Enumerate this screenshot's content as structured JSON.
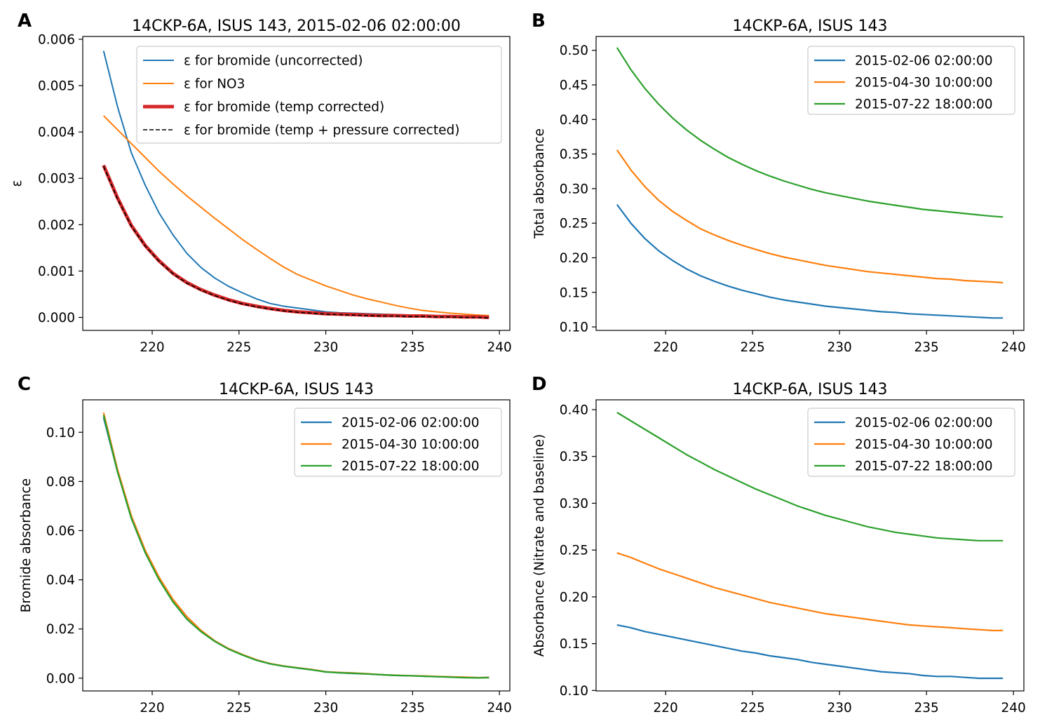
{
  "chart_data": [
    {
      "type": "line",
      "panel_label": "A",
      "title": "14CKP-6A, ISUS 143, 2015-02-06 02:00:00",
      "xlabel": "",
      "ylabel": "ε",
      "xlim": [
        216,
        240.6
      ],
      "ylim": [
        -0.00028,
        0.00606
      ],
      "xticks": [
        "220",
        "225",
        "230",
        "235",
        "240"
      ],
      "yticks": [
        "0.000",
        "0.001",
        "0.002",
        "0.003",
        "0.004",
        "0.005",
        "0.006"
      ],
      "legend_position": "top-right",
      "x": [
        217.2,
        218.0,
        218.8,
        219.6,
        220.4,
        221.2,
        222.0,
        222.8,
        223.6,
        224.4,
        225.2,
        226.0,
        226.8,
        227.6,
        228.4,
        229.2,
        230.0,
        230.8,
        231.6,
        232.4,
        233.2,
        234.0,
        234.8,
        235.6,
        236.4,
        237.2,
        238.0,
        238.8,
        239.4
      ],
      "series": [
        {
          "name": "ε for bromide (uncorrected)",
          "color": "#1f77b4",
          "style": "solid",
          "width": 2,
          "values": [
            0.00575,
            0.00455,
            0.00355,
            0.00285,
            0.00225,
            0.00178,
            0.00138,
            0.00108,
            0.00085,
            0.00067,
            0.00053,
            0.0004,
            0.0003,
            0.00024,
            0.0002,
            0.00016,
            0.00012,
            0.0001,
            9e-05,
            8e-05,
            7e-05,
            6e-05,
            5e-05,
            4e-05,
            4e-05,
            3e-05,
            2e-05,
            2e-05,
            1e-05
          ]
        },
        {
          "name": "ε for NO3",
          "color": "#ff7f0e",
          "style": "solid",
          "width": 2,
          "values": [
            0.00435,
            0.00405,
            0.00375,
            0.00345,
            0.00315,
            0.00288,
            0.00262,
            0.00238,
            0.00214,
            0.00191,
            0.00168,
            0.00147,
            0.00127,
            0.00108,
            0.00092,
            0.0008,
            0.00068,
            0.00058,
            0.00048,
            0.0004,
            0.00033,
            0.00026,
            0.0002,
            0.00015,
            0.00012,
            9e-05,
            7e-05,
            5e-05,
            4e-05
          ]
        },
        {
          "name": "ε for bromide (temp corrected)",
          "color": "#d62728",
          "style": "solid",
          "width": 5,
          "values": [
            0.00328,
            0.00258,
            0.00198,
            0.00155,
            0.00122,
            0.00095,
            0.00075,
            0.0006,
            0.00048,
            0.00038,
            0.0003,
            0.00024,
            0.00019,
            0.00015,
            0.00012,
            0.0001,
            8e-05,
            7e-05,
            6e-05,
            5e-05,
            4e-05,
            4e-05,
            3e-05,
            3e-05,
            2e-05,
            2e-05,
            1e-05,
            1e-05,
            0.0
          ]
        },
        {
          "name": "ε for bromide (temp + pressure corrected)",
          "color": "#000000",
          "style": "dashed",
          "width": 1.6,
          "values": [
            0.00326,
            0.00256,
            0.00197,
            0.00154,
            0.00121,
            0.00094,
            0.00074,
            0.00059,
            0.00047,
            0.00037,
            0.00029,
            0.00023,
            0.00018,
            0.00014,
            0.00011,
            9e-05,
            7e-05,
            6e-05,
            5e-05,
            4e-05,
            3e-05,
            3e-05,
            2e-05,
            2e-05,
            1e-05,
            1e-05,
            0.0,
            0.0,
            -1e-05
          ]
        }
      ]
    },
    {
      "type": "line",
      "panel_label": "B",
      "title": "14CKP-6A, ISUS 143",
      "xlabel": "",
      "ylabel": "Total absorbance",
      "xlim": [
        216,
        240.6
      ],
      "ylim": [
        0.095,
        0.52
      ],
      "xticks": [
        "220",
        "225",
        "230",
        "235",
        "240"
      ],
      "yticks": [
        "0.10",
        "0.15",
        "0.20",
        "0.25",
        "0.30",
        "0.35",
        "0.40",
        "0.45",
        "0.50"
      ],
      "legend_position": "top-right",
      "x": [
        217.2,
        218.0,
        218.8,
        219.6,
        220.4,
        221.2,
        222.0,
        222.8,
        223.6,
        224.4,
        225.2,
        226.0,
        226.8,
        227.6,
        228.4,
        229.2,
        230.0,
        230.8,
        231.6,
        232.4,
        233.2,
        234.0,
        234.8,
        235.6,
        236.4,
        237.2,
        238.0,
        238.8,
        239.4
      ],
      "series": [
        {
          "name": "2015-02-06 02:00:00",
          "color": "#1f77b4",
          "values": [
            0.277,
            0.25,
            0.228,
            0.21,
            0.196,
            0.184,
            0.174,
            0.166,
            0.159,
            0.153,
            0.148,
            0.143,
            0.139,
            0.136,
            0.133,
            0.13,
            0.128,
            0.126,
            0.124,
            0.122,
            0.121,
            0.119,
            0.118,
            0.117,
            0.116,
            0.115,
            0.114,
            0.113,
            0.113
          ]
        },
        {
          "name": "2015-04-30 10:00:00",
          "color": "#ff7f0e",
          "values": [
            0.356,
            0.327,
            0.303,
            0.283,
            0.267,
            0.254,
            0.242,
            0.233,
            0.225,
            0.218,
            0.212,
            0.206,
            0.201,
            0.197,
            0.193,
            0.189,
            0.186,
            0.183,
            0.18,
            0.178,
            0.176,
            0.174,
            0.172,
            0.17,
            0.169,
            0.167,
            0.166,
            0.165,
            0.164
          ]
        },
        {
          "name": "2015-07-22 18:00:00",
          "color": "#2ca02c",
          "values": [
            0.504,
            0.472,
            0.445,
            0.422,
            0.402,
            0.385,
            0.37,
            0.357,
            0.345,
            0.335,
            0.326,
            0.318,
            0.311,
            0.305,
            0.299,
            0.294,
            0.29,
            0.286,
            0.282,
            0.279,
            0.276,
            0.273,
            0.27,
            0.268,
            0.266,
            0.264,
            0.262,
            0.26,
            0.259
          ]
        }
      ]
    },
    {
      "type": "line",
      "panel_label": "C",
      "title": "14CKP-6A, ISUS 143",
      "xlabel": "",
      "ylabel": "Bromide absorbance",
      "xlim": [
        216,
        240.6
      ],
      "ylim": [
        -0.0052,
        0.1132
      ],
      "xticks": [
        "220",
        "225",
        "230",
        "235",
        "240"
      ],
      "yticks": [
        "0.00",
        "0.02",
        "0.04",
        "0.06",
        "0.08",
        "0.10"
      ],
      "legend_position": "top-right",
      "x": [
        217.2,
        218.0,
        218.8,
        219.6,
        220.4,
        221.2,
        222.0,
        222.8,
        223.6,
        224.4,
        225.2,
        226.0,
        226.8,
        227.6,
        228.4,
        229.2,
        230.0,
        230.8,
        231.6,
        232.4,
        233.2,
        234.0,
        234.8,
        235.6,
        236.4,
        237.2,
        238.0,
        238.8,
        239.4
      ],
      "series": [
        {
          "name": "2015-02-06 02:00:00",
          "color": "#1f77b4",
          "values": [
            0.106,
            0.084,
            0.065,
            0.051,
            0.04,
            0.031,
            0.024,
            0.019,
            0.015,
            0.0118,
            0.0095,
            0.0073,
            0.0058,
            0.0049,
            0.0041,
            0.0034,
            0.0026,
            0.0022,
            0.0019,
            0.0017,
            0.0014,
            0.0011,
            0.001,
            0.0008,
            0.0006,
            0.0005,
            0.0003,
            0.0002,
            0.0003
          ]
        },
        {
          "name": "2015-04-30 10:00:00",
          "color": "#ff7f0e",
          "values": [
            0.108,
            0.085,
            0.066,
            0.052,
            0.041,
            0.032,
            0.025,
            0.0195,
            0.0152,
            0.012,
            0.0096,
            0.0075,
            0.0059,
            0.0049,
            0.0042,
            0.0035,
            0.0026,
            0.0023,
            0.0021,
            0.0018,
            0.0014,
            0.0012,
            0.001,
            0.0009,
            0.0007,
            0.0005,
            0.0004,
            0.0002,
            0.0003
          ]
        },
        {
          "name": "2015-07-22 18:00:00",
          "color": "#2ca02c",
          "values": [
            0.107,
            0.084,
            0.065,
            0.051,
            0.04,
            0.031,
            0.024,
            0.019,
            0.015,
            0.0118,
            0.0094,
            0.0073,
            0.0058,
            0.0048,
            0.0041,
            0.0034,
            0.0025,
            0.0022,
            0.002,
            0.0017,
            0.0014,
            0.0011,
            0.001,
            0.0008,
            0.0006,
            0.0004,
            0.0002,
            0.0001,
            0.0002
          ]
        }
      ]
    },
    {
      "type": "line",
      "panel_label": "D",
      "title": "14CKP-6A, ISUS 143",
      "xlabel": "",
      "ylabel": "Absorbance (Nitrate and baseline)",
      "xlim": [
        216,
        240.6
      ],
      "ylim": [
        0.0995,
        0.4105
      ],
      "xticks": [
        "220",
        "225",
        "230",
        "235",
        "240"
      ],
      "yticks": [
        "0.10",
        "0.15",
        "0.20",
        "0.25",
        "0.30",
        "0.35",
        "0.40"
      ],
      "legend_position": "top-right",
      "x": [
        217.2,
        218.0,
        218.8,
        219.6,
        220.4,
        221.2,
        222.0,
        222.8,
        223.6,
        224.4,
        225.2,
        226.0,
        226.8,
        227.6,
        228.4,
        229.2,
        230.0,
        230.8,
        231.6,
        232.4,
        233.2,
        234.0,
        234.8,
        235.6,
        236.4,
        237.2,
        238.0,
        238.8,
        239.4
      ],
      "series": [
        {
          "name": "2015-02-06 02:00:00",
          "color": "#1f77b4",
          "values": [
            0.17,
            0.167,
            0.163,
            0.16,
            0.157,
            0.154,
            0.151,
            0.148,
            0.145,
            0.142,
            0.14,
            0.137,
            0.135,
            0.133,
            0.13,
            0.128,
            0.126,
            0.124,
            0.122,
            0.12,
            0.119,
            0.118,
            0.116,
            0.115,
            0.115,
            0.114,
            0.113,
            0.113,
            0.113
          ]
        },
        {
          "name": "2015-04-30 10:00:00",
          "color": "#ff7f0e",
          "values": [
            0.247,
            0.242,
            0.236,
            0.23,
            0.225,
            0.22,
            0.215,
            0.21,
            0.206,
            0.202,
            0.198,
            0.194,
            0.191,
            0.188,
            0.185,
            0.182,
            0.18,
            0.178,
            0.176,
            0.174,
            0.172,
            0.17,
            0.169,
            0.168,
            0.167,
            0.166,
            0.165,
            0.164,
            0.164
          ]
        },
        {
          "name": "2015-07-22 18:00:00",
          "color": "#2ca02c",
          "values": [
            0.397,
            0.388,
            0.379,
            0.37,
            0.361,
            0.352,
            0.344,
            0.336,
            0.329,
            0.322,
            0.315,
            0.309,
            0.303,
            0.297,
            0.292,
            0.287,
            0.283,
            0.279,
            0.275,
            0.272,
            0.269,
            0.267,
            0.265,
            0.263,
            0.262,
            0.261,
            0.26,
            0.26,
            0.26
          ]
        }
      ]
    }
  ]
}
